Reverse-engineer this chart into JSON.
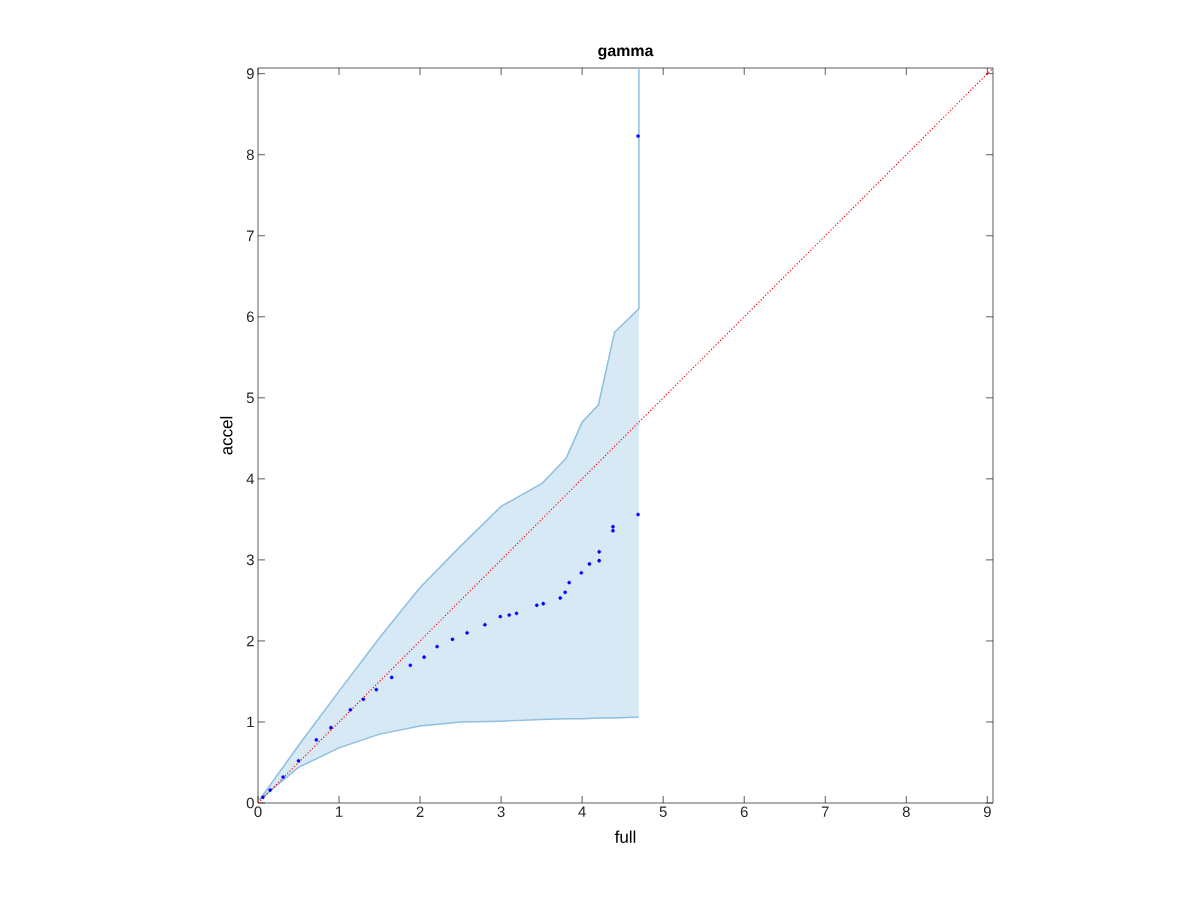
{
  "chart_data": {
    "type": "scatter",
    "title": "gamma",
    "xlabel": "full",
    "ylabel": "accel",
    "xlim": [
      0,
      9.07
    ],
    "ylim": [
      0,
      9.07
    ],
    "xticks": [
      0,
      1,
      2,
      3,
      4,
      5,
      6,
      7,
      8,
      9
    ],
    "yticks": [
      0,
      1,
      2,
      3,
      4,
      5,
      6,
      7,
      8,
      9
    ],
    "grid": false,
    "series": [
      {
        "type": "line",
        "color": "#8dbfe0",
        "x": [
          0.02,
          0.5,
          1.0,
          1.5,
          2.0,
          2.5,
          3.0,
          3.5,
          3.8,
          4.0,
          4.2,
          4.4,
          4.7,
          4.7
        ],
        "lower": [
          0.04,
          0.44,
          0.68,
          0.85,
          0.95,
          1.0,
          1.01,
          1.03,
          1.04,
          1.04,
          1.05,
          1.05,
          1.06,
          1.06
        ],
        "upper": [
          0.04,
          0.71,
          1.38,
          2.04,
          2.66,
          3.17,
          3.66,
          3.94,
          4.25,
          4.7,
          4.91,
          5.81,
          6.1,
          9.07
        ],
        "values": [
          0.04,
          0.71,
          1.38,
          2.04,
          2.66,
          3.17,
          3.66,
          3.94,
          4.25,
          4.7,
          4.91,
          5.81,
          6.1,
          9.07
        ]
      },
      {
        "type": "line",
        "color": "#8dbfe0",
        "x": [
          0.02,
          0.5,
          1.0,
          1.5,
          2.0,
          2.5,
          3.0,
          3.5,
          3.8,
          4.0,
          4.2,
          4.4,
          4.7
        ],
        "values": [
          0.04,
          0.44,
          0.68,
          0.85,
          0.95,
          1.0,
          1.01,
          1.03,
          1.04,
          1.04,
          1.05,
          1.05,
          1.06
        ]
      },
      {
        "color": "#0000ff",
        "marker": "circle",
        "x": [
          0.06,
          0.15,
          0.31,
          0.5,
          0.72,
          0.9,
          1.14,
          1.3,
          1.46,
          1.65,
          1.88,
          2.05,
          2.21,
          2.4,
          2.58,
          2.8,
          2.99,
          3.1,
          3.19,
          3.44,
          3.52,
          3.73,
          3.79,
          3.84,
          3.99,
          4.09,
          4.21,
          4.21,
          4.38,
          4.38,
          4.69,
          4.69
        ],
        "values": [
          0.07,
          0.16,
          0.32,
          0.52,
          0.78,
          0.93,
          1.15,
          1.28,
          1.4,
          1.55,
          1.7,
          1.8,
          1.93,
          2.02,
          2.1,
          2.2,
          2.3,
          2.32,
          2.34,
          2.44,
          2.46,
          2.53,
          2.6,
          2.72,
          2.84,
          2.95,
          2.99,
          3.1,
          3.36,
          3.41,
          3.56,
          8.23
        ]
      },
      {
        "type": "line",
        "color": "#ff0000",
        "line_style": "dotted",
        "x": [
          0,
          9.07
        ],
        "values": [
          0,
          9.07
        ]
      }
    ]
  }
}
